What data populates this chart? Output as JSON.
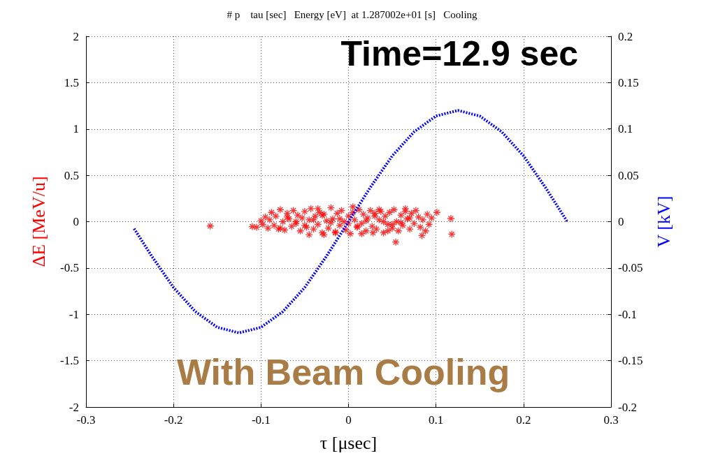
{
  "chart_data": {
    "type": "scatter",
    "title": "# p    tau [sec]   Energy [eV]  at 1.287002e+01 [s]   Cooling",
    "xlabel": "τ [μsec]",
    "ylabel": "ΔE [MeV/u]",
    "y2label": "V [kV]",
    "annotations": [
      "Time=12.9 sec",
      "With Beam Cooling"
    ],
    "xlim": [
      -0.3,
      0.3
    ],
    "xticks": [
      -0.3,
      -0.2,
      -0.1,
      0,
      0.1,
      0.2,
      0.3
    ],
    "ylim": [
      -2,
      2
    ],
    "yticks": [
      -2,
      -1.5,
      -1,
      -0.5,
      0,
      0.5,
      1,
      1.5,
      2
    ],
    "y2lim": [
      -0.2,
      0.2
    ],
    "y2ticks": [
      -0.2,
      -0.15,
      -0.1,
      -0.05,
      0,
      0.05,
      0.1,
      0.15,
      0.2
    ],
    "grid": true,
    "series": [
      {
        "color": "#ff0000",
        "marker": "cross",
        "x": [
          -0.158,
          -0.11,
          -0.105,
          -0.1,
          -0.098,
          -0.095,
          -0.092,
          -0.09,
          -0.088,
          -0.085,
          -0.083,
          -0.08,
          -0.078,
          -0.075,
          -0.073,
          -0.07,
          -0.068,
          -0.065,
          -0.063,
          -0.06,
          -0.058,
          -0.055,
          -0.053,
          -0.05,
          -0.048,
          -0.045,
          -0.043,
          -0.04,
          -0.038,
          -0.035,
          -0.033,
          -0.03,
          -0.028,
          -0.025,
          -0.023,
          -0.02,
          -0.018,
          -0.015,
          -0.013,
          -0.01,
          -0.008,
          -0.005,
          -0.003,
          0,
          0.002,
          0.005,
          0.007,
          0.01,
          0.012,
          0.015,
          0.017,
          0.02,
          0.022,
          0.025,
          0.027,
          0.03,
          0.032,
          0.035,
          0.037,
          0.04,
          0.042,
          0.045,
          0.047,
          0.05,
          0.052,
          0.055,
          0.057,
          0.06,
          0.062,
          0.065,
          0.067,
          0.07,
          0.072,
          0.075,
          0.077,
          0.08,
          0.082,
          0.085,
          0.088,
          0.09,
          0.092,
          0.095,
          -0.06,
          -0.04,
          -0.02,
          0,
          0.02,
          0.04,
          0.06,
          -0.07,
          -0.05,
          -0.03,
          -0.01,
          0.01,
          0.03,
          0.05,
          0.07,
          -0.045,
          -0.015,
          0.015,
          0.045,
          -0.035,
          0.005,
          0.035,
          0.054,
          0.101,
          0.117,
          0.118,
          0.084,
          -0.078,
          -0.028,
          0.028,
          0.065
        ],
        "values": [
          -0.047,
          -0.053,
          -0.06,
          0.01,
          -0.03,
          0.05,
          -0.07,
          0.02,
          0.1,
          -0.04,
          0.06,
          -0.08,
          0.13,
          0.0,
          -0.09,
          0.09,
          0.03,
          -0.05,
          0.12,
          -0.02,
          0.07,
          -0.1,
          0.04,
          0.11,
          -0.06,
          0.02,
          0.14,
          -0.08,
          0.06,
          -0.03,
          0.1,
          -0.12,
          0.08,
          0.01,
          -0.07,
          0.15,
          0.03,
          -0.11,
          0.09,
          -0.04,
          0.12,
          0.0,
          -0.09,
          0.06,
          -0.13,
          0.1,
          0.02,
          -0.06,
          0.13,
          -0.02,
          0.08,
          -0.1,
          0.04,
          0.12,
          -0.05,
          0.09,
          -0.08,
          0.02,
          0.11,
          -0.12,
          0.06,
          -0.03,
          0.1,
          -0.07,
          0.13,
          0.0,
          -0.1,
          0.07,
          -0.04,
          0.11,
          0.03,
          -0.08,
          0.09,
          -0.02,
          0.12,
          0.05,
          -0.06,
          0.02,
          -0.1,
          0.08,
          -0.03,
          0.04,
          0.0,
          0.02,
          -0.01,
          -0.02,
          0.01,
          0.0,
          -0.01,
          0.05,
          -0.04,
          0.07,
          0.03,
          -0.05,
          0.06,
          -0.03,
          0.04,
          -0.14,
          -0.12,
          -0.13,
          -0.1,
          0.14,
          0.16,
          0.13,
          -0.22,
          0.1,
          0.034,
          -0.135,
          -0.15,
          -0.07,
          -0.14,
          -0.12,
          0.14
        ]
      },
      {
        "type": "line",
        "axis": "y2",
        "color": "#0000ff",
        "marker": "none",
        "line_style": "dotted",
        "x": [
          -0.245,
          -0.225,
          -0.2,
          -0.175,
          -0.15,
          -0.125,
          -0.1,
          -0.075,
          -0.05,
          -0.025,
          0,
          0.025,
          0.05,
          0.075,
          0.1,
          0.125,
          0.15,
          0.175,
          0.2,
          0.225,
          0.25
        ],
        "values": [
          -0.0075,
          -0.037,
          -0.071,
          -0.097,
          -0.114,
          -0.12,
          -0.114,
          -0.097,
          -0.071,
          -0.037,
          0,
          0.037,
          0.071,
          0.097,
          0.114,
          0.12,
          0.114,
          0.097,
          0.071,
          0.037,
          0
        ]
      }
    ]
  }
}
